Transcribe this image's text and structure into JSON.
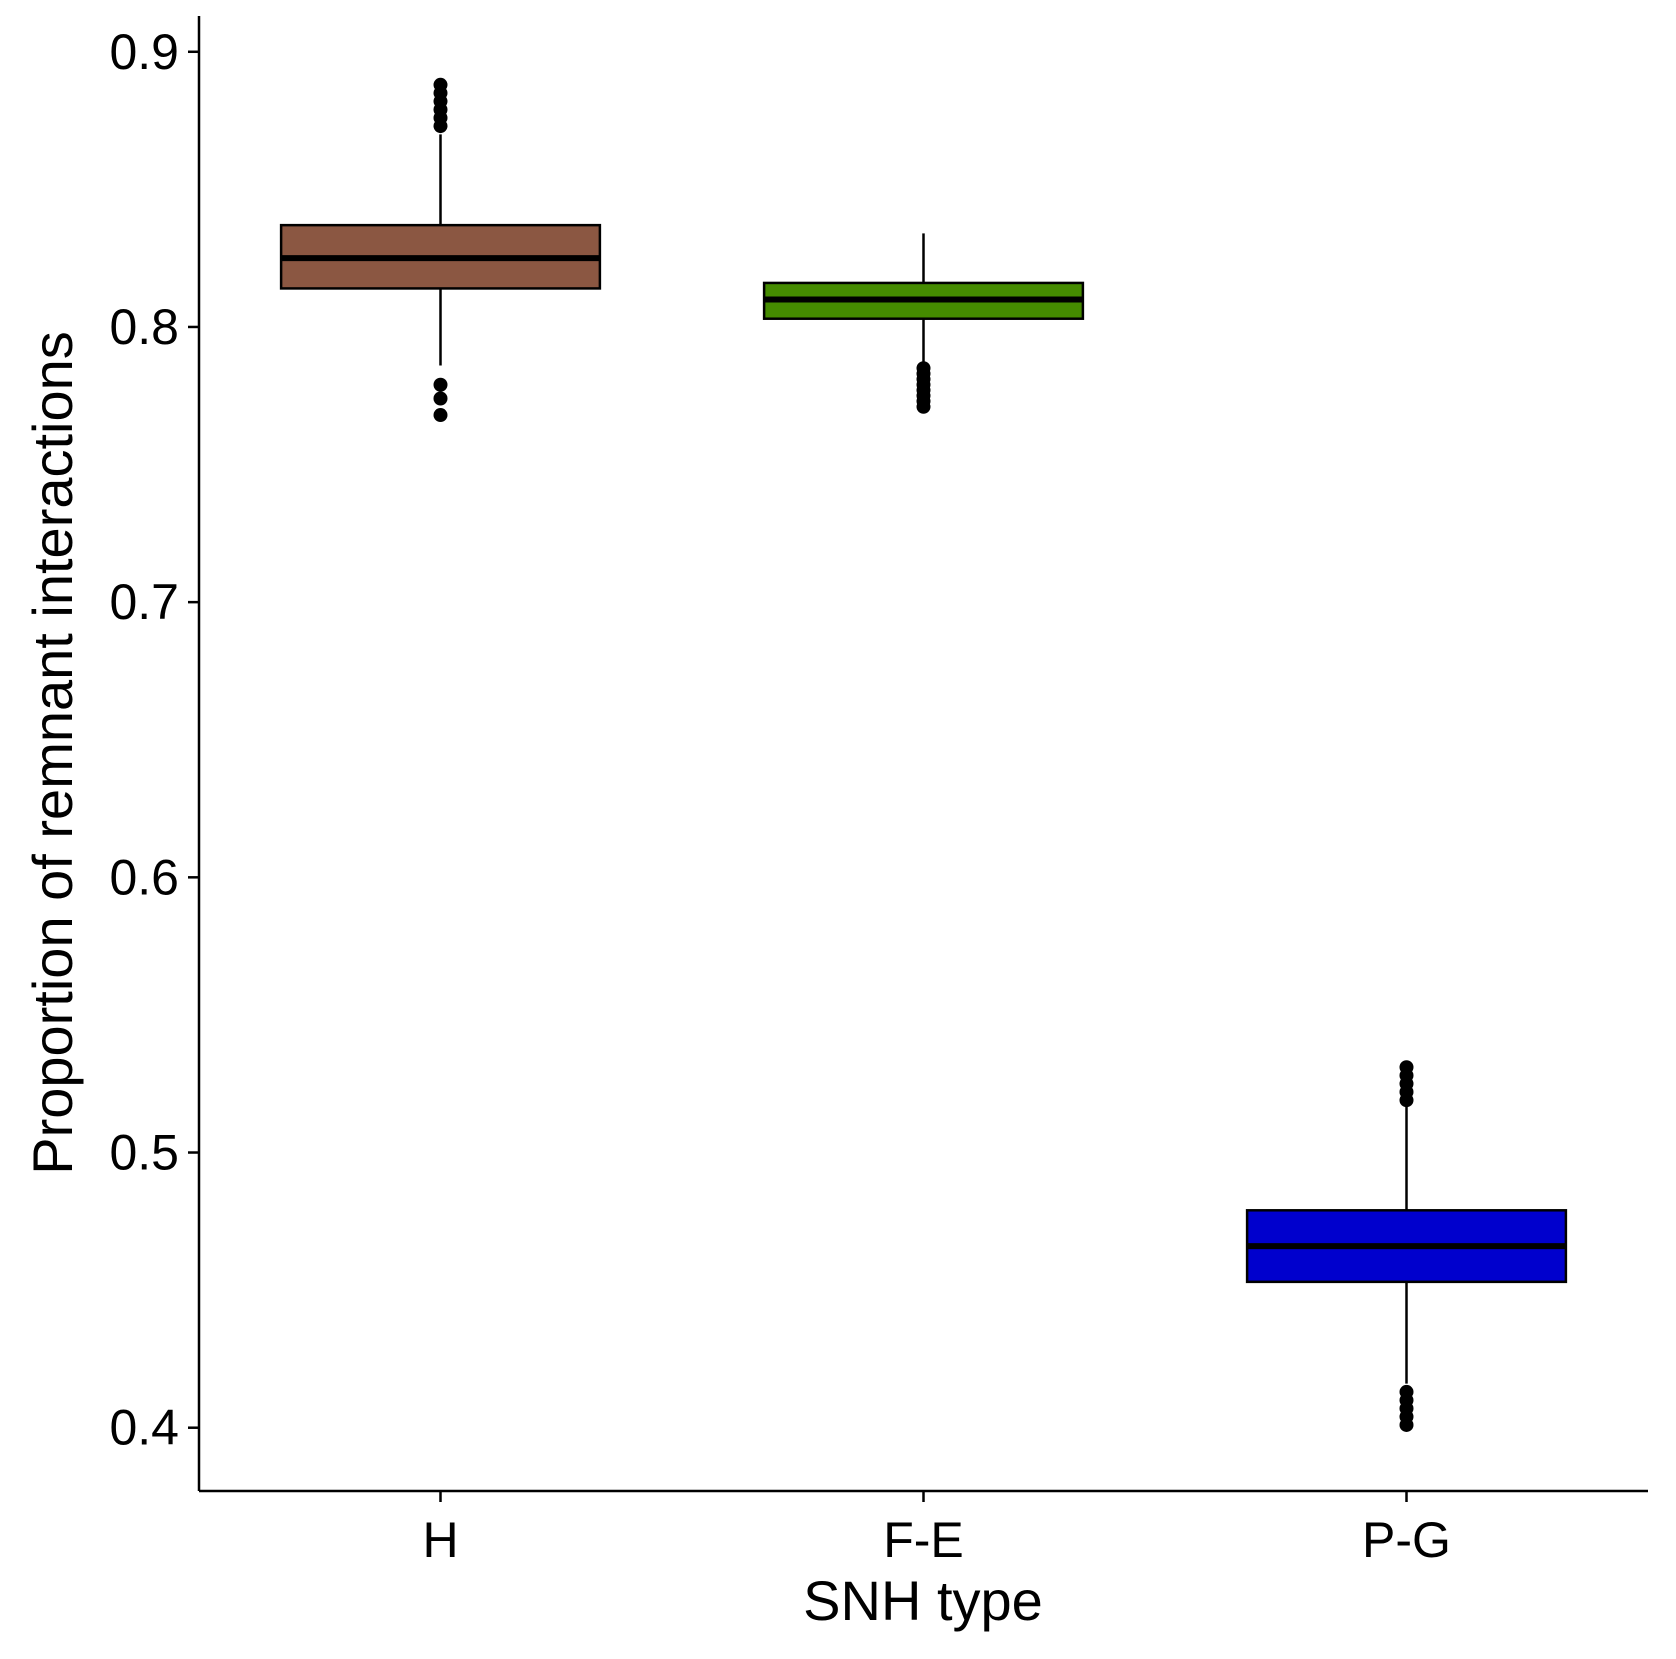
{
  "chart_data": {
    "type": "boxplot",
    "title": "",
    "xlabel": "SNH type",
    "ylabel": "Proportion of remnant interactions",
    "ylim": [
      0.377,
      0.913
    ],
    "y_ticks": [
      0.4,
      0.5,
      0.6,
      0.7,
      0.8,
      0.9
    ],
    "y_tick_labels": [
      "0.4",
      "0.5",
      "0.6",
      "0.7",
      "0.8",
      "0.9"
    ],
    "grid": false,
    "legend": "none",
    "categories": [
      "H",
      "F-E",
      "P-G"
    ],
    "boxes": [
      {
        "category": "H",
        "color": "#8B5742",
        "whisker_low": 0.786,
        "q1": 0.814,
        "median": 0.825,
        "q3": 0.837,
        "whisker_high": 0.87,
        "outliers": [
          0.768,
          0.774,
          0.779,
          0.873,
          0.876,
          0.879,
          0.882,
          0.885,
          0.888
        ]
      },
      {
        "category": "F-E",
        "color": "#458B00",
        "whisker_low": 0.786,
        "q1": 0.803,
        "median": 0.81,
        "q3": 0.816,
        "whisker_high": 0.834,
        "outliers": [
          0.771,
          0.773,
          0.775,
          0.777,
          0.779,
          0.781,
          0.783,
          0.785
        ]
      },
      {
        "category": "P-G",
        "color": "#0000CD",
        "whisker_low": 0.416,
        "q1": 0.453,
        "median": 0.466,
        "q3": 0.479,
        "whisker_high": 0.517,
        "outliers": [
          0.401,
          0.404,
          0.407,
          0.41,
          0.413,
          0.519,
          0.522,
          0.525,
          0.528,
          0.531
        ]
      }
    ]
  }
}
